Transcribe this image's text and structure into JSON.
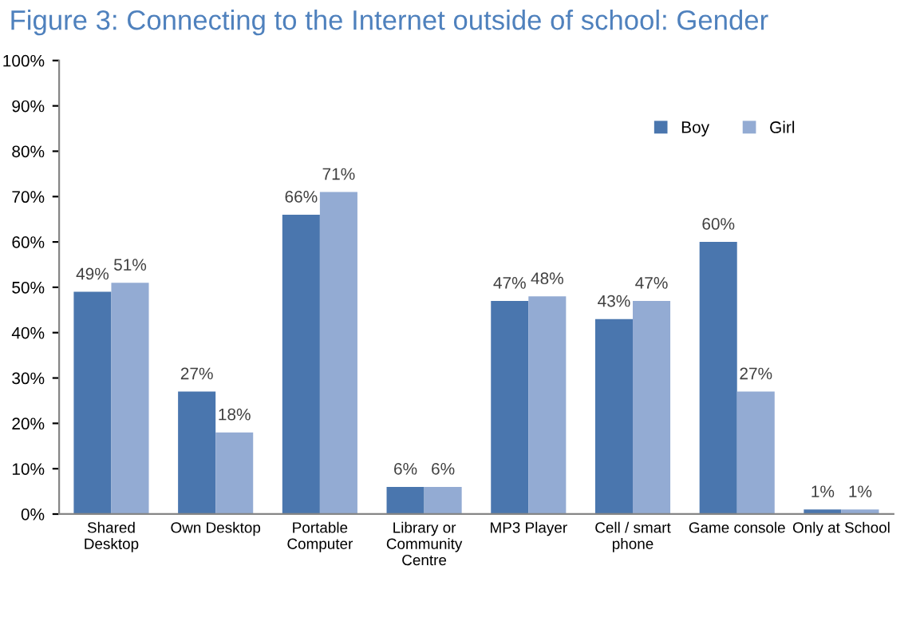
{
  "chart_data": {
    "type": "bar",
    "title": "Figure 3: Connecting to the Internet outside of school: Gender",
    "categories": [
      "Shared\nDesktop",
      "Own Desktop",
      "Portable\nComputer",
      "Library or\nCommunity\nCentre",
      "MP3 Player",
      "Cell / smart\nphone",
      "Game console",
      "Only at School"
    ],
    "series": [
      {
        "name": "Boy",
        "color": "#4a76ae",
        "values": [
          49,
          27,
          66,
          6,
          47,
          43,
          60,
          1
        ],
        "value_labels": [
          "49%",
          "27%",
          "66%",
          "6%",
          "47%",
          "43%",
          "60%",
          "1%"
        ]
      },
      {
        "name": "Girl",
        "color": "#93abd3",
        "values": [
          51,
          18,
          71,
          6,
          48,
          47,
          27,
          1
        ],
        "value_labels": [
          "51%",
          "18%",
          "71%",
          "6%",
          "48%",
          "47%",
          "27%",
          "1%"
        ]
      }
    ],
    "ylim": [
      0,
      100
    ],
    "yticks": [
      {
        "value": 0,
        "label": "0%"
      },
      {
        "value": 10,
        "label": "10%"
      },
      {
        "value": 20,
        "label": "20%"
      },
      {
        "value": 30,
        "label": "30%"
      },
      {
        "value": 40,
        "label": "40%"
      },
      {
        "value": 50,
        "label": "50%"
      },
      {
        "value": 60,
        "label": "60%"
      },
      {
        "value": 70,
        "label": "70%"
      },
      {
        "value": 80,
        "label": "80%"
      },
      {
        "value": 90,
        "label": "90%"
      },
      {
        "value": 100,
        "label": "100%"
      }
    ],
    "legend": "top right",
    "grid": false
  }
}
